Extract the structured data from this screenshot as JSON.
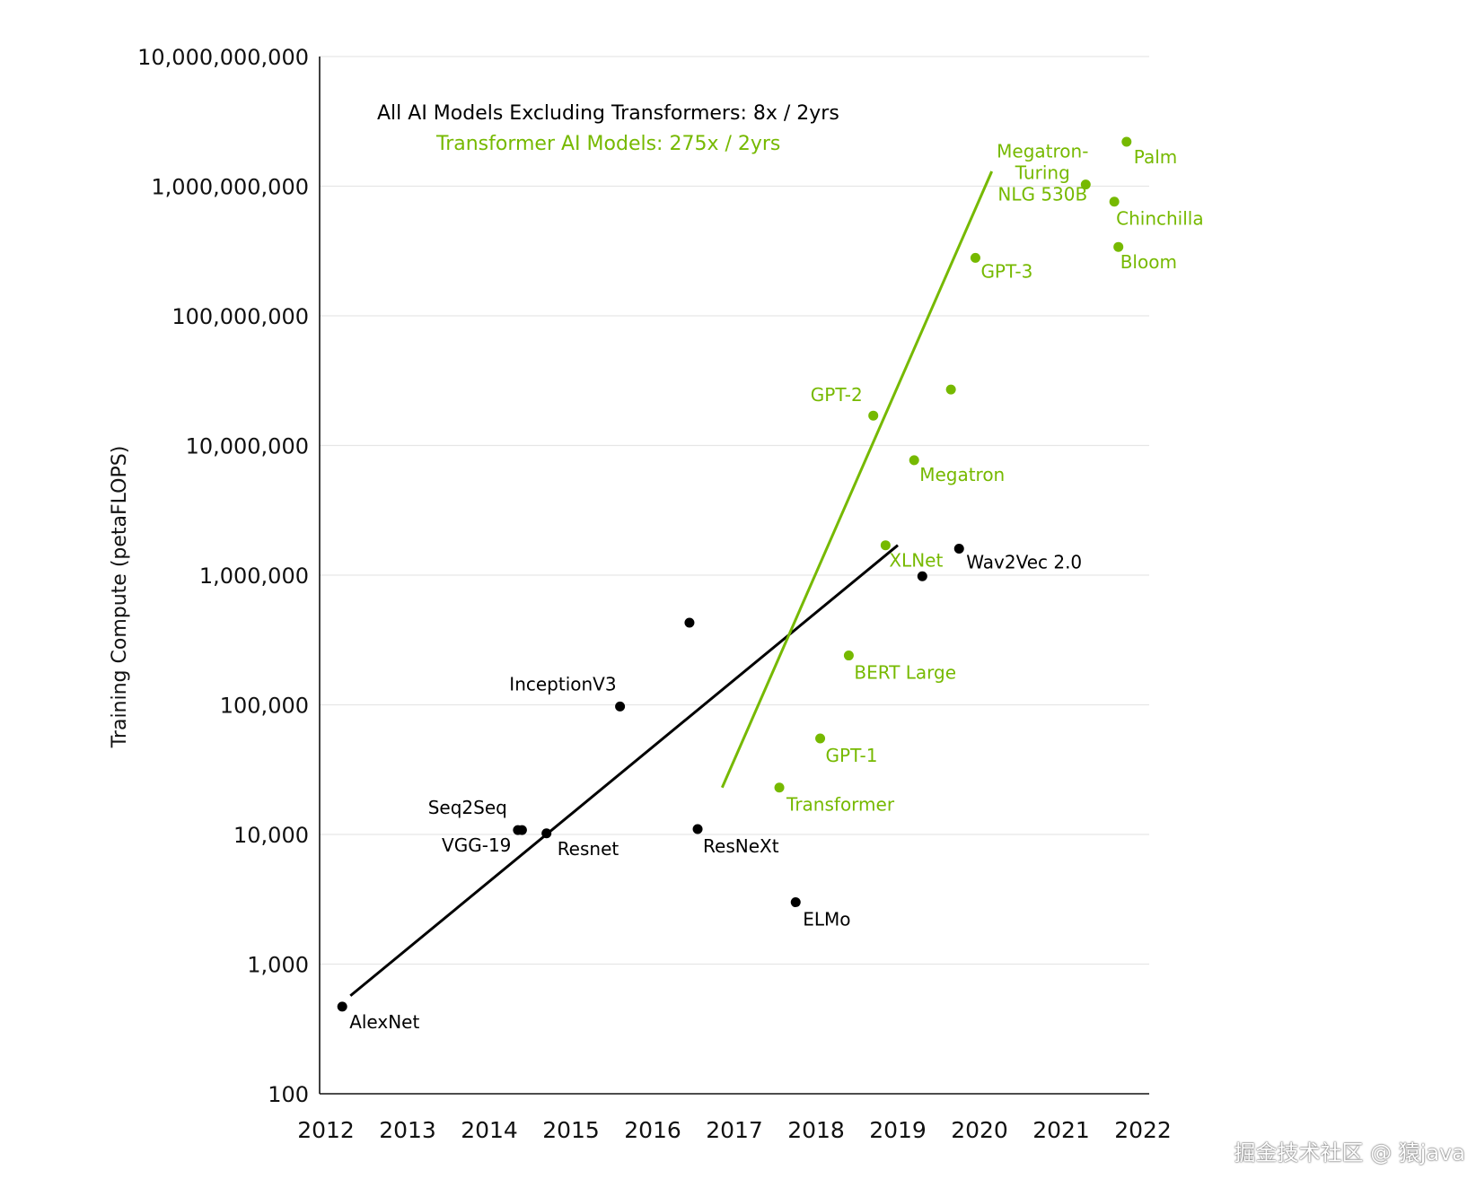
{
  "chart_data": {
    "type": "scatter",
    "ylabel": "Training Compute (petaFLOPS)",
    "xlabel": "",
    "yscale": "log",
    "ylim": [
      100,
      10000000000
    ],
    "xlim": [
      2012,
      2022
    ],
    "x_ticks": [
      "2012",
      "2013",
      "2014",
      "2015",
      "2016",
      "2017",
      "2018",
      "2019",
      "2020",
      "2021",
      "2022"
    ],
    "y_ticks": [
      {
        "value": 100,
        "label": "100"
      },
      {
        "value": 1000,
        "label": "1,000"
      },
      {
        "value": 10000,
        "label": "10,000"
      },
      {
        "value": 100000,
        "label": "100,000"
      },
      {
        "value": 1000000,
        "label": "1,000,000"
      },
      {
        "value": 10000000,
        "label": "10,000,000"
      },
      {
        "value": 100000000,
        "label": "100,000,000"
      },
      {
        "value": 1000000000,
        "label": "1,000,000,000"
      },
      {
        "value": 10000000000,
        "label": "10,000,000,000"
      }
    ],
    "grid": "horizontal",
    "annotations": [
      {
        "text": "All AI Models Excluding Transformers: 8x / 2yrs",
        "series": "non-transformer"
      },
      {
        "text": "Transformer AI Models: 275x / 2yrs",
        "series": "transformer"
      }
    ],
    "colors": {
      "non-transformer": "#000000",
      "transformer": "#76b900"
    },
    "series": [
      {
        "key": "non-transformer",
        "points": [
          {
            "label": "AlexNet",
            "x": 2012.2,
            "y": 470
          },
          {
            "label": "Seq2Seq",
            "x": 2014.35,
            "y": 10800
          },
          {
            "label": "VGG-19",
            "x": 2014.4,
            "y": 10800
          },
          {
            "label": "Resnet",
            "x": 2014.7,
            "y": 10200
          },
          {
            "label": "InceptionV3",
            "x": 2015.6,
            "y": 97000
          },
          {
            "label": "",
            "x": 2016.45,
            "y": 430000
          },
          {
            "label": "ResNeXt",
            "x": 2016.55,
            "y": 11000
          },
          {
            "label": "ELMo",
            "x": 2017.75,
            "y": 3000
          },
          {
            "label": "",
            "x": 2019.3,
            "y": 980000
          },
          {
            "label": "Wav2Vec 2.0",
            "x": 2019.75,
            "y": 1600000
          }
        ],
        "trend": [
          {
            "x": 2012.3,
            "y": 570
          },
          {
            "x": 2019.0,
            "y": 1700000
          }
        ]
      },
      {
        "key": "transformer",
        "points": [
          {
            "label": "Transformer",
            "x": 2017.55,
            "y": 23000
          },
          {
            "label": "GPT-1",
            "x": 2018.05,
            "y": 55000
          },
          {
            "label": "BERT Large",
            "x": 2018.4,
            "y": 240000
          },
          {
            "label": "XLNet",
            "x": 2018.85,
            "y": 1700000
          },
          {
            "label": "GPT-2",
            "x": 2018.7,
            "y": 17000000
          },
          {
            "label": "Megatron",
            "x": 2019.2,
            "y": 7700000
          },
          {
            "label": "",
            "x": 2019.65,
            "y": 27000000
          },
          {
            "label": "GPT-3",
            "x": 2019.95,
            "y": 280000000
          },
          {
            "label": "Megatron-\nTuring\nNLG 530B",
            "x": 2021.3,
            "y": 1030000000
          },
          {
            "label": "Chinchilla",
            "x": 2021.65,
            "y": 760000000
          },
          {
            "label": "Palm",
            "x": 2021.8,
            "y": 2200000000
          },
          {
            "label": "Bloom",
            "x": 2021.7,
            "y": 340000000
          }
        ],
        "trend": [
          {
            "x": 2016.85,
            "y": 23000
          },
          {
            "x": 2020.15,
            "y": 1300000000
          }
        ]
      }
    ]
  },
  "watermark": "掘金技术社区 @ 猿java"
}
